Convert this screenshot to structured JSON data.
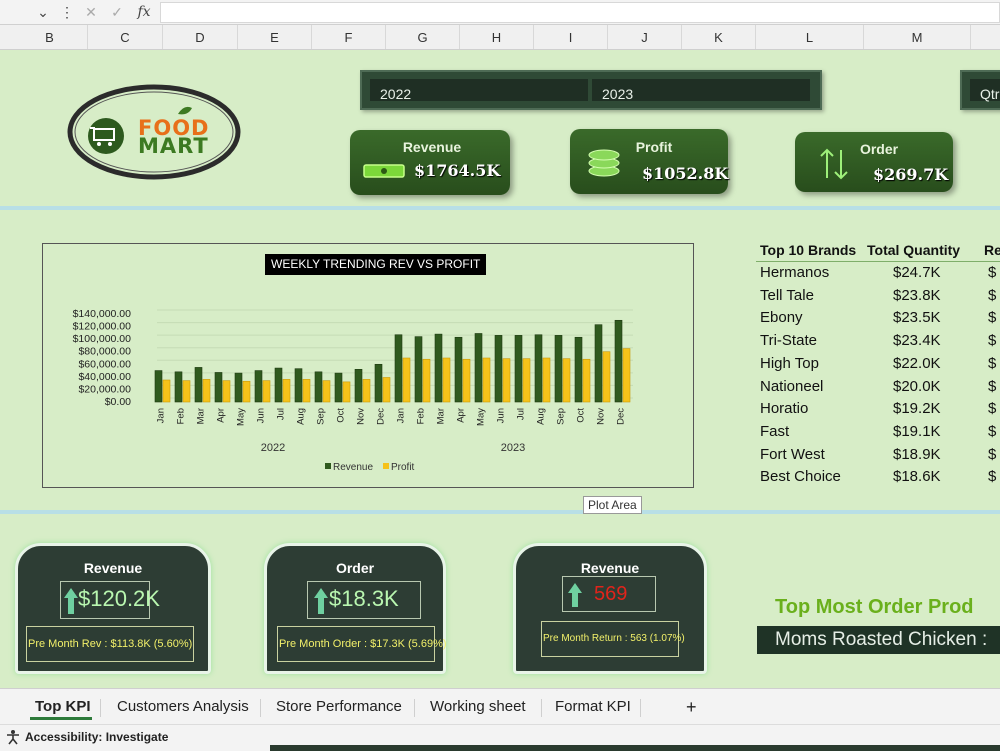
{
  "formula_bar": {
    "fx_label": "fx",
    "cancel_symbol": "✕",
    "enter_symbol": "✓"
  },
  "columns": [
    "B",
    "C",
    "D",
    "E",
    "F",
    "G",
    "H",
    "I",
    "J",
    "K",
    "L",
    "M"
  ],
  "slicer": {
    "items": [
      "2022",
      "2023"
    ],
    "partial": "Qtr"
  },
  "logo": {
    "line1": "FOOD",
    "line2": "MART"
  },
  "kpis": [
    {
      "title": "Revenue",
      "value": "$1764.5K",
      "icon": "money-icon"
    },
    {
      "title": "Profit",
      "value": "$1052.8K",
      "icon": "coins-icon"
    },
    {
      "title": "Order",
      "value": "$269.7K",
      "icon": "up-down-arrows-icon"
    }
  ],
  "chart_data": {
    "type": "bar",
    "title": "WEEKLY TRENDING REV VS PROFIT",
    "categories": [
      "Jan",
      "Feb",
      "Mar",
      "Apr",
      "May",
      "Jun",
      "Jul",
      "Aug",
      "Sep",
      "Oct",
      "Nov",
      "Dec",
      "Jan",
      "Feb",
      "Mar",
      "Apr",
      "May",
      "Jun",
      "Jul",
      "Aug",
      "Sep",
      "Oct",
      "Nov",
      "Dec"
    ],
    "groups": [
      {
        "label": "2022",
        "start": 0,
        "end": 11
      },
      {
        "label": "2023",
        "start": 12,
        "end": 23
      }
    ],
    "series": [
      {
        "name": "Revenue",
        "color": "#2f5a1e",
        "values": [
          50000,
          48000,
          55000,
          47000,
          46000,
          50000,
          54000,
          53000,
          48000,
          46000,
          52000,
          60000,
          107000,
          104000,
          108000,
          103000,
          109000,
          106000,
          106000,
          107000,
          106000,
          103000,
          123000,
          130000
        ]
      },
      {
        "name": "Profit",
        "color": "#f5c21a",
        "values": [
          35000,
          34000,
          36000,
          34000,
          33000,
          34000,
          36000,
          36000,
          34000,
          32000,
          36000,
          39000,
          70000,
          68000,
          70000,
          68000,
          70000,
          69000,
          69000,
          70000,
          69000,
          68000,
          80000,
          85000
        ]
      }
    ],
    "y_ticks": [
      "$140,000.00",
      "$120,000.00",
      "$100,000.00",
      "$80,000.00",
      "$60,000.00",
      "$40,000.00",
      "$20,000.00",
      "$0.00"
    ],
    "ylim": [
      0,
      140000
    ],
    "legend": "bottom"
  },
  "tooltip": "Plot Area",
  "brands": {
    "headers": [
      "Top 10 Brands",
      "Total Quantity",
      "Re"
    ],
    "rows": [
      {
        "brand": "Hermanos",
        "qty": "$24.7K",
        "re": "$"
      },
      {
        "brand": "Tell Tale",
        "qty": "$23.8K",
        "re": "$"
      },
      {
        "brand": "Ebony",
        "qty": "$23.5K",
        "re": "$"
      },
      {
        "brand": "Tri-State",
        "qty": "$23.4K",
        "re": "$"
      },
      {
        "brand": "High Top",
        "qty": "$22.0K",
        "re": "$"
      },
      {
        "brand": "Nationeel",
        "qty": "$20.0K",
        "re": "$"
      },
      {
        "brand": "Horatio",
        "qty": "$19.2K",
        "re": "$"
      },
      {
        "brand": "Fast",
        "qty": "$19.1K",
        "re": "$"
      },
      {
        "brand": "Fort West",
        "qty": "$18.9K",
        "re": "$"
      },
      {
        "brand": "Best Choice",
        "qty": "$18.6K",
        "re": "$"
      }
    ]
  },
  "bottom_cards": [
    {
      "title": "Revenue",
      "value": "$120.2K",
      "sub": "Pre Month Rev : $113.8K (5.60%)",
      "value_color": "#b9f7b0"
    },
    {
      "title": "Order",
      "value": "$18.3K",
      "sub": "Pre Month Order : $17.3K (5.69%)",
      "value_color": "#b9f7b0"
    },
    {
      "title": "Revenue",
      "value": "569",
      "sub": "Pre Month Return : 563 (1.07%)",
      "value_color": "#e0241b"
    }
  ],
  "top_product": {
    "title": "Top Most Order Prod",
    "value": "Moms Roasted Chicken :"
  },
  "tabs": [
    "Top KPI",
    "Customers Analysis",
    "Store Performance",
    "Working sheet",
    "Format KPI"
  ],
  "add_tab": "+",
  "status": {
    "accessibility": "Accessibility: Investigate"
  }
}
